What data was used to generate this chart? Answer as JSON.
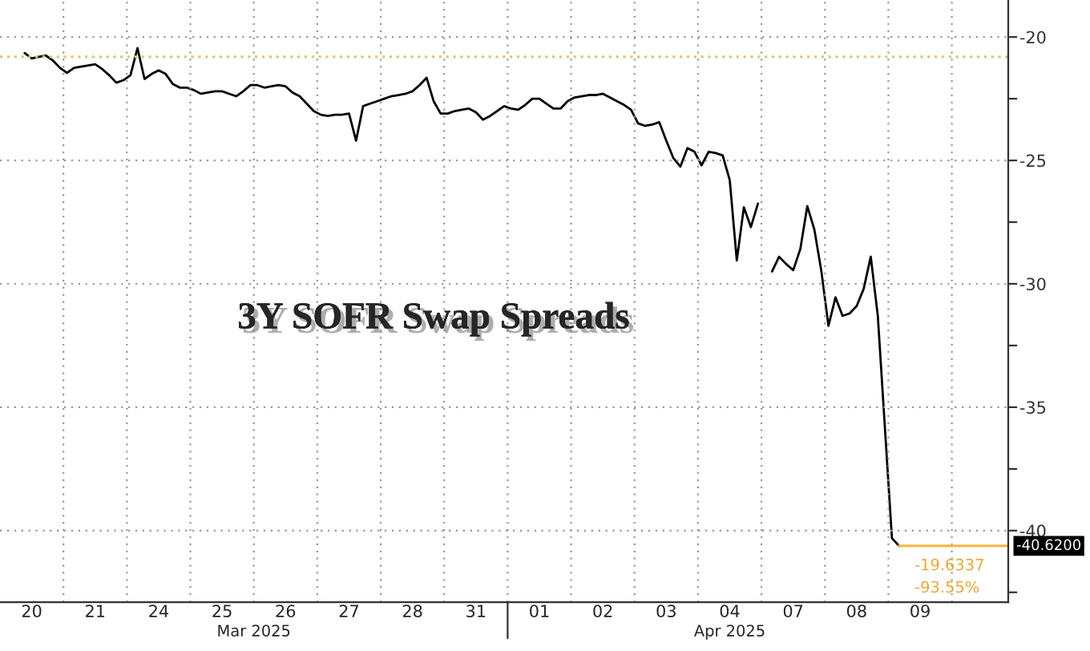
{
  "chart_data": {
    "type": "line",
    "title": "3Y SOFR Swap Spreads",
    "categories": [
      null,
      null,
      null,
      null,
      "20",
      null,
      null,
      null,
      null,
      null,
      null,
      null,
      null,
      "21",
      null,
      null,
      null,
      null,
      null,
      null,
      null,
      null,
      "24",
      null,
      null,
      null,
      null,
      null,
      null,
      null,
      null,
      "25",
      null,
      null,
      null,
      null,
      null,
      null,
      null,
      null,
      "26",
      null,
      null,
      null,
      null,
      null,
      null,
      null,
      null,
      "27",
      null,
      null,
      null,
      null,
      null,
      null,
      null,
      null,
      "28",
      null,
      null,
      null,
      null,
      null,
      null,
      null,
      null,
      "31",
      null,
      null,
      null,
      null,
      null,
      null,
      null,
      null,
      "01",
      null,
      null,
      null,
      null,
      null,
      null,
      null,
      null,
      "02",
      null,
      null,
      null,
      null,
      null,
      null,
      null,
      null,
      "03",
      null,
      null,
      null,
      null,
      null,
      null,
      null,
      null,
      "04",
      null,
      null,
      null,
      null,
      null,
      null,
      null,
      null,
      "07",
      null,
      null,
      null,
      null,
      null,
      null,
      null,
      null,
      "08",
      null,
      null,
      null,
      null,
      null,
      null,
      null,
      null,
      "09",
      null,
      null,
      null,
      null,
      null,
      null,
      null,
      null,
      null,
      null,
      null,
      null
    ],
    "series": [
      {
        "color": "#000000",
        "values": [
          null,
          null,
          null,
          -20.65,
          -20.87,
          -20.8,
          -20.75,
          -20.95,
          -21.25,
          -21.45,
          -21.25,
          -21.2,
          -21.15,
          -21.1,
          -21.3,
          -21.55,
          -21.85,
          -21.75,
          -21.55,
          -20.45,
          -21.7,
          -21.5,
          -21.35,
          -21.5,
          -21.9,
          -22.05,
          -22.05,
          -22.15,
          -22.3,
          -22.25,
          -22.2,
          -22.2,
          -22.3,
          -22.4,
          -22.2,
          -21.95,
          -21.95,
          -22.05,
          -22.0,
          -21.95,
          -22.0,
          -22.25,
          -22.4,
          -22.7,
          -23.0,
          -23.15,
          -23.2,
          -23.15,
          -23.15,
          -23.1,
          -24.2,
          -22.8,
          -22.7,
          -22.6,
          -22.5,
          -22.4,
          -22.35,
          -22.3,
          -22.2,
          -21.95,
          -21.65,
          -22.6,
          -23.1,
          -23.1,
          -23.0,
          -22.95,
          -22.9,
          -23.05,
          -23.35,
          -23.2,
          -23.0,
          -22.8,
          -22.9,
          -22.95,
          -22.75,
          -22.5,
          -22.5,
          -22.7,
          -22.9,
          -22.9,
          -22.6,
          -22.45,
          -22.4,
          -22.35,
          -22.35,
          -22.3,
          -22.45,
          -22.6,
          -22.75,
          -22.95,
          -23.5,
          -23.6,
          -23.55,
          -23.45,
          -24.2,
          -24.9,
          -25.25,
          -24.5,
          -24.65,
          -25.2,
          -24.65,
          -24.7,
          -24.8,
          -25.8,
          -29.05,
          -26.9,
          -27.7,
          -26.75,
          null,
          -29.5,
          -28.9,
          -29.2,
          -29.45,
          -28.6,
          -26.85,
          -27.8,
          -29.5,
          -31.7,
          -30.55,
          -31.3,
          -31.2,
          -30.9,
          -30.2,
          -28.9,
          -31.3,
          -35.8,
          -40.3,
          -40.62,
          null,
          null,
          null,
          null,
          null,
          null,
          null,
          null,
          null,
          null,
          null,
          null,
          null,
          null,
          null
        ]
      }
    ],
    "ylim": [
      -42.9,
      -18.5
    ],
    "yticks": [
      -20,
      -25,
      -30,
      -35,
      -40,
      {
        "value": -22.5,
        "label": null
      },
      {
        "value": -27.5,
        "label": null
      },
      {
        "value": -32.5,
        "label": null
      },
      {
        "value": -37.5,
        "label": null
      },
      {
        "value": -42.5,
        "label": null
      }
    ],
    "grid": true,
    "line_style": "solid",
    "ref_lines": [
      {
        "axis": "y",
        "value": -20.8,
        "color": "#dccb72",
        "line_style": "dotted"
      },
      {
        "axis": "y",
        "value": -40.62,
        "label": "-40.6200",
        "color": "#f2b84b",
        "line_style": "solid"
      }
    ],
    "annotations": [
      "Mar 2025",
      "Apr 2025",
      "-19.6337",
      "-93.55%"
    ]
  }
}
